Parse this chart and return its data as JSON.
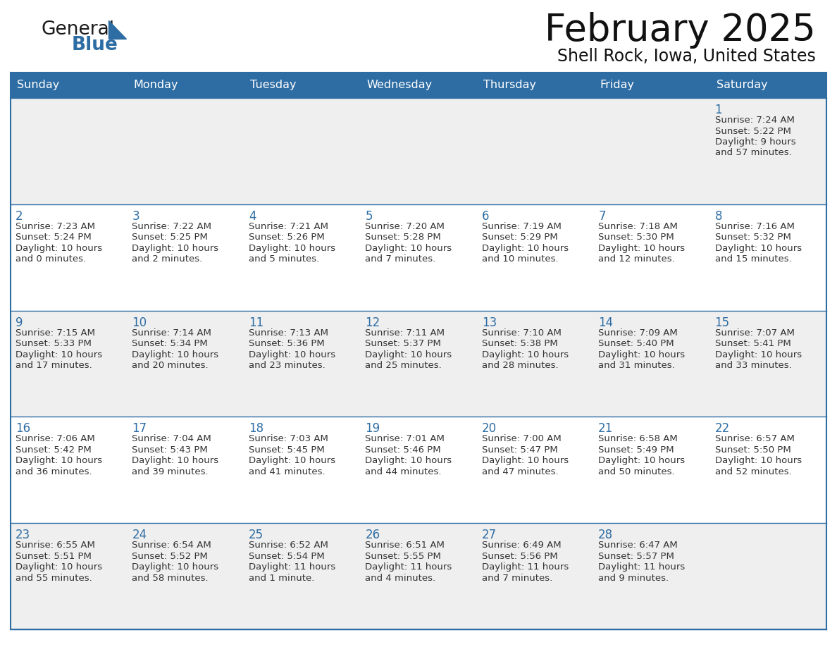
{
  "title": "February 2025",
  "subtitle": "Shell Rock, Iowa, United States",
  "header_bg": "#2E6DA4",
  "header_text_color": "#FFFFFF",
  "cell_bg_odd": "#EFEFEF",
  "cell_bg_even": "#FFFFFF",
  "border_color": "#2E6DA4",
  "row_border_color": "#2E6DA4",
  "day_num_color": "#2E6DA4",
  "text_color": "#333333",
  "day_headers": [
    "Sunday",
    "Monday",
    "Tuesday",
    "Wednesday",
    "Thursday",
    "Friday",
    "Saturday"
  ],
  "days": [
    {
      "day": 1,
      "col": 6,
      "row": 0,
      "sunrise": "7:24 AM",
      "sunset": "5:22 PM",
      "daylight": "9 hours and 57 minutes."
    },
    {
      "day": 2,
      "col": 0,
      "row": 1,
      "sunrise": "7:23 AM",
      "sunset": "5:24 PM",
      "daylight": "10 hours and 0 minutes."
    },
    {
      "day": 3,
      "col": 1,
      "row": 1,
      "sunrise": "7:22 AM",
      "sunset": "5:25 PM",
      "daylight": "10 hours and 2 minutes."
    },
    {
      "day": 4,
      "col": 2,
      "row": 1,
      "sunrise": "7:21 AM",
      "sunset": "5:26 PM",
      "daylight": "10 hours and 5 minutes."
    },
    {
      "day": 5,
      "col": 3,
      "row": 1,
      "sunrise": "7:20 AM",
      "sunset": "5:28 PM",
      "daylight": "10 hours and 7 minutes."
    },
    {
      "day": 6,
      "col": 4,
      "row": 1,
      "sunrise": "7:19 AM",
      "sunset": "5:29 PM",
      "daylight": "10 hours and 10 minutes."
    },
    {
      "day": 7,
      "col": 5,
      "row": 1,
      "sunrise": "7:18 AM",
      "sunset": "5:30 PM",
      "daylight": "10 hours and 12 minutes."
    },
    {
      "day": 8,
      "col": 6,
      "row": 1,
      "sunrise": "7:16 AM",
      "sunset": "5:32 PM",
      "daylight": "10 hours and 15 minutes."
    },
    {
      "day": 9,
      "col": 0,
      "row": 2,
      "sunrise": "7:15 AM",
      "sunset": "5:33 PM",
      "daylight": "10 hours and 17 minutes."
    },
    {
      "day": 10,
      "col": 1,
      "row": 2,
      "sunrise": "7:14 AM",
      "sunset": "5:34 PM",
      "daylight": "10 hours and 20 minutes."
    },
    {
      "day": 11,
      "col": 2,
      "row": 2,
      "sunrise": "7:13 AM",
      "sunset": "5:36 PM",
      "daylight": "10 hours and 23 minutes."
    },
    {
      "day": 12,
      "col": 3,
      "row": 2,
      "sunrise": "7:11 AM",
      "sunset": "5:37 PM",
      "daylight": "10 hours and 25 minutes."
    },
    {
      "day": 13,
      "col": 4,
      "row": 2,
      "sunrise": "7:10 AM",
      "sunset": "5:38 PM",
      "daylight": "10 hours and 28 minutes."
    },
    {
      "day": 14,
      "col": 5,
      "row": 2,
      "sunrise": "7:09 AM",
      "sunset": "5:40 PM",
      "daylight": "10 hours and 31 minutes."
    },
    {
      "day": 15,
      "col": 6,
      "row": 2,
      "sunrise": "7:07 AM",
      "sunset": "5:41 PM",
      "daylight": "10 hours and 33 minutes."
    },
    {
      "day": 16,
      "col": 0,
      "row": 3,
      "sunrise": "7:06 AM",
      "sunset": "5:42 PM",
      "daylight": "10 hours and 36 minutes."
    },
    {
      "day": 17,
      "col": 1,
      "row": 3,
      "sunrise": "7:04 AM",
      "sunset": "5:43 PM",
      "daylight": "10 hours and 39 minutes."
    },
    {
      "day": 18,
      "col": 2,
      "row": 3,
      "sunrise": "7:03 AM",
      "sunset": "5:45 PM",
      "daylight": "10 hours and 41 minutes."
    },
    {
      "day": 19,
      "col": 3,
      "row": 3,
      "sunrise": "7:01 AM",
      "sunset": "5:46 PM",
      "daylight": "10 hours and 44 minutes."
    },
    {
      "day": 20,
      "col": 4,
      "row": 3,
      "sunrise": "7:00 AM",
      "sunset": "5:47 PM",
      "daylight": "10 hours and 47 minutes."
    },
    {
      "day": 21,
      "col": 5,
      "row": 3,
      "sunrise": "6:58 AM",
      "sunset": "5:49 PM",
      "daylight": "10 hours and 50 minutes."
    },
    {
      "day": 22,
      "col": 6,
      "row": 3,
      "sunrise": "6:57 AM",
      "sunset": "5:50 PM",
      "daylight": "10 hours and 52 minutes."
    },
    {
      "day": 23,
      "col": 0,
      "row": 4,
      "sunrise": "6:55 AM",
      "sunset": "5:51 PM",
      "daylight": "10 hours and 55 minutes."
    },
    {
      "day": 24,
      "col": 1,
      "row": 4,
      "sunrise": "6:54 AM",
      "sunset": "5:52 PM",
      "daylight": "10 hours and 58 minutes."
    },
    {
      "day": 25,
      "col": 2,
      "row": 4,
      "sunrise": "6:52 AM",
      "sunset": "5:54 PM",
      "daylight": "11 hours and 1 minute."
    },
    {
      "day": 26,
      "col": 3,
      "row": 4,
      "sunrise": "6:51 AM",
      "sunset": "5:55 PM",
      "daylight": "11 hours and 4 minutes."
    },
    {
      "day": 27,
      "col": 4,
      "row": 4,
      "sunrise": "6:49 AM",
      "sunset": "5:56 PM",
      "daylight": "11 hours and 7 minutes."
    },
    {
      "day": 28,
      "col": 5,
      "row": 4,
      "sunrise": "6:47 AM",
      "sunset": "5:57 PM",
      "daylight": "11 hours and 9 minutes."
    }
  ],
  "logo_general_color": "#1a1a1a",
  "logo_blue_color": "#2E6DA4",
  "logo_triangle_color": "#2E6DA4"
}
